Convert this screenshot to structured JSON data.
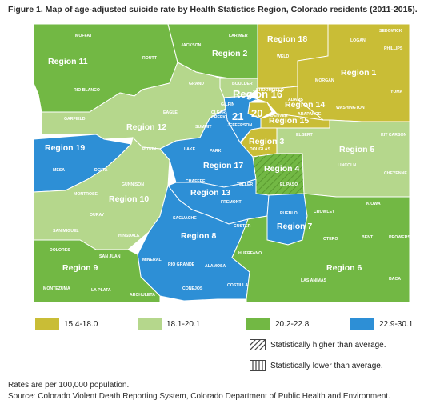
{
  "figure": {
    "title": "Figure 1. Map of age-adjusted suicide rate by Health Statistics Region, Colorado residents (2011-2015).",
    "rates_note": "Rates are per 100,000 population.",
    "source": "Source: Colorado Violent Death Reporting System, Colorado Department of Public Health and Environment."
  },
  "colors": {
    "band1": "#c9bd36",
    "band2": "#b5d78c",
    "band3": "#72b844",
    "band4": "#2d8fd6",
    "border": "#ffffff"
  },
  "legend": {
    "band1": "15.4-18.0",
    "band2": "18.1-20.1",
    "band3": "20.2-22.8",
    "band4": "22.9-30.1",
    "higher": "Statistically higher than average.",
    "lower": "Statistically lower than average."
  },
  "regions": [
    {
      "label": "Region 18",
      "band": "band1"
    },
    {
      "label": "Region 1",
      "band": "band1"
    },
    {
      "label": "Region 14",
      "band": "band1"
    },
    {
      "label": "Region 15",
      "band": "band1"
    },
    {
      "label": "Region 3",
      "band": "band1"
    },
    {
      "label": "Region 11",
      "band": "band3"
    },
    {
      "label": "Region 2",
      "band": "band3"
    },
    {
      "label": "Region 16",
      "band": "band2"
    },
    {
      "label": "Region 12",
      "band": "band2"
    },
    {
      "label": "Region 19",
      "band": "band4"
    },
    {
      "label": "Region 10",
      "band": "band2"
    },
    {
      "label": "Region 9",
      "band": "band3"
    },
    {
      "label": "Region 8",
      "band": "band4"
    },
    {
      "label": "Region 17",
      "band": "band4"
    },
    {
      "label": "Region 13",
      "band": "band4"
    },
    {
      "label": "Region 4",
      "band": "band3",
      "pattern": "higher"
    },
    {
      "label": "Region 5",
      "band": "band2"
    },
    {
      "label": "Region 7",
      "band": "band4"
    },
    {
      "label": "Region 6",
      "band": "band3"
    },
    {
      "label": "21",
      "band": "band4"
    },
    {
      "label": "20",
      "band": "band1"
    }
  ],
  "counties": {
    "moffat": "MOFFAT",
    "routt": "ROUTT",
    "jackson": "JACKSON",
    "larimer": "LARIMER",
    "weld": "WELD",
    "logan": "LOGAN",
    "sedgwick": "SEDGWICK",
    "phillips": "PHILLIPS",
    "morgan": "MORGAN",
    "washington": "WASHINGTON",
    "yuma": "YUMA",
    "rio_blanco": "RIO BLANCO",
    "grand": "GRAND",
    "boulder": "BOULDER",
    "broomfield": "BROOMFIELD",
    "adams": "ADAMS",
    "gilpin": "GILPIN",
    "clear_creek": "CLEAR CREEK",
    "jefferson": "JEFFERSON",
    "denver": "DENVER",
    "arapahoe": "ARAPAHOE",
    "garfield": "GARFIELD",
    "eagle": "EAGLE",
    "summit": "SUMMIT",
    "douglas": "DOUGLAS",
    "elbert": "ELBERT",
    "kit_carson": "KIT CARSON",
    "lincoln": "LINCOLN",
    "cheyenne": "CHEYENNE",
    "pitkin": "PITKIN",
    "lake": "LAKE",
    "park": "PARK",
    "mesa": "MESA",
    "delta": "DELTA",
    "gunnison": "GUNNISON",
    "chaffee": "CHAFFEE",
    "teller": "TELLER",
    "el_paso": "EL PASO",
    "fremont": "FREMONT",
    "montrose": "MONTROSE",
    "ouray": "OURAY",
    "san_miguel": "SAN MIGUEL",
    "hinsdale": "HINSDALE",
    "saguache": "SAGUACHE",
    "custer": "CUSTER",
    "pueblo": "PUEBLO",
    "crowley": "CROWLEY",
    "kiowa": "KIOWA",
    "otero": "OTERO",
    "bent": "BENT",
    "prowers": "PROWERS",
    "dolores": "DOLORES",
    "san_juan": "SAN JUAN",
    "mineral": "MINERAL",
    "rio_grande": "RIO GRANDE",
    "alamosa": "ALAMOSA",
    "huerfano": "HUERFANO",
    "montezuma": "MONTEZUMA",
    "la_plata": "LA PLATA",
    "archuleta": "ARCHULETA",
    "conejos": "CONEJOS",
    "costilla": "COSTILLA",
    "las_animas": "LAS ANIMAS",
    "baca": "BACA"
  }
}
